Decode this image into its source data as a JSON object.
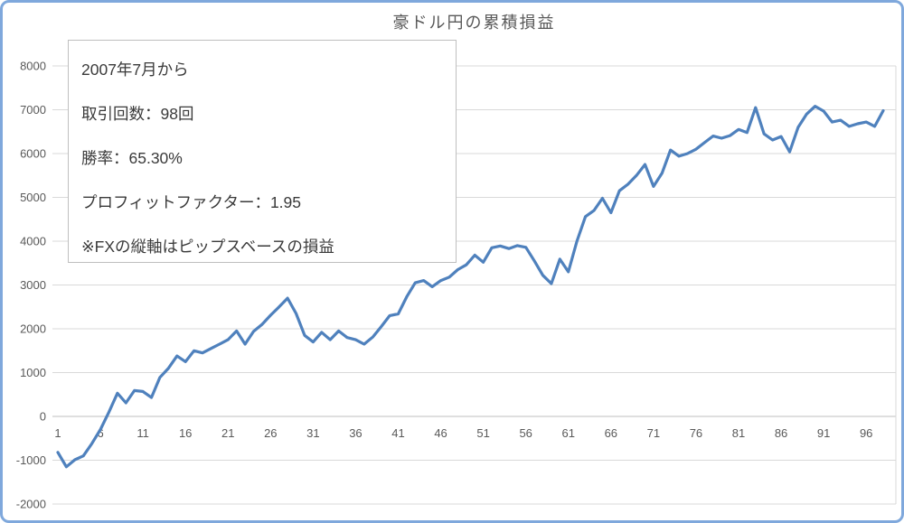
{
  "chart": {
    "colors": {
      "line": "#4F81BD",
      "gridline": "#D9D9D9",
      "zero_axis": "#BFBFBF",
      "plot_right_border": "#D9D9D9",
      "outer_border": "#7FA8DC",
      "tick_label": "#595959",
      "title": "#595959",
      "annotation_text": "#3a3a3a",
      "annotation_border": "#BFBFBF"
    }
  },
  "chart_data": {
    "type": "line",
    "title": "豪ドル円の累積損益",
    "series_name": "累積損益",
    "xlabel": "",
    "ylabel": "",
    "x_start": 1,
    "x_end": 98,
    "ylim": [
      -2000,
      8000
    ],
    "y_ticks": [
      8000,
      7000,
      6000,
      5000,
      4000,
      3000,
      2000,
      1000,
      0,
      -1000,
      -2000
    ],
    "x_ticks": [
      1,
      6,
      11,
      16,
      21,
      26,
      31,
      36,
      41,
      46,
      51,
      56,
      61,
      66,
      71,
      76,
      81,
      86,
      91,
      96
    ],
    "grid": "horizontal-only",
    "legend": "none",
    "values": [
      -820,
      -1150,
      -990,
      -900,
      -620,
      -300,
      100,
      530,
      310,
      590,
      570,
      430,
      890,
      1100,
      1380,
      1250,
      1500,
      1450,
      1550,
      1650,
      1750,
      1950,
      1650,
      1940,
      2100,
      2310,
      2500,
      2700,
      2350,
      1850,
      1700,
      1920,
      1750,
      1950,
      1800,
      1750,
      1650,
      1810,
      2050,
      2300,
      2340,
      2730,
      3050,
      3100,
      2960,
      3100,
      3180,
      3350,
      3460,
      3680,
      3520,
      3850,
      3890,
      3830,
      3900,
      3860,
      3550,
      3220,
      3030,
      3590,
      3300,
      4000,
      4560,
      4700,
      4980,
      4650,
      5150,
      5300,
      5500,
      5750,
      5250,
      5550,
      6080,
      5940,
      6000,
      6100,
      6250,
      6400,
      6350,
      6410,
      6550,
      6480,
      7050,
      6450,
      6310,
      6390,
      6040,
      6600,
      6900,
      7080,
      6970,
      6720,
      6760,
      6620,
      6680,
      6720,
      6620,
      6980
    ],
    "annotation_lines": [
      "2007年7月から",
      "取引回数：98回",
      "勝率：65.30%",
      "プロフィットファクター：1.95",
      "※FXの縦軸はピップスベースの損益"
    ]
  }
}
